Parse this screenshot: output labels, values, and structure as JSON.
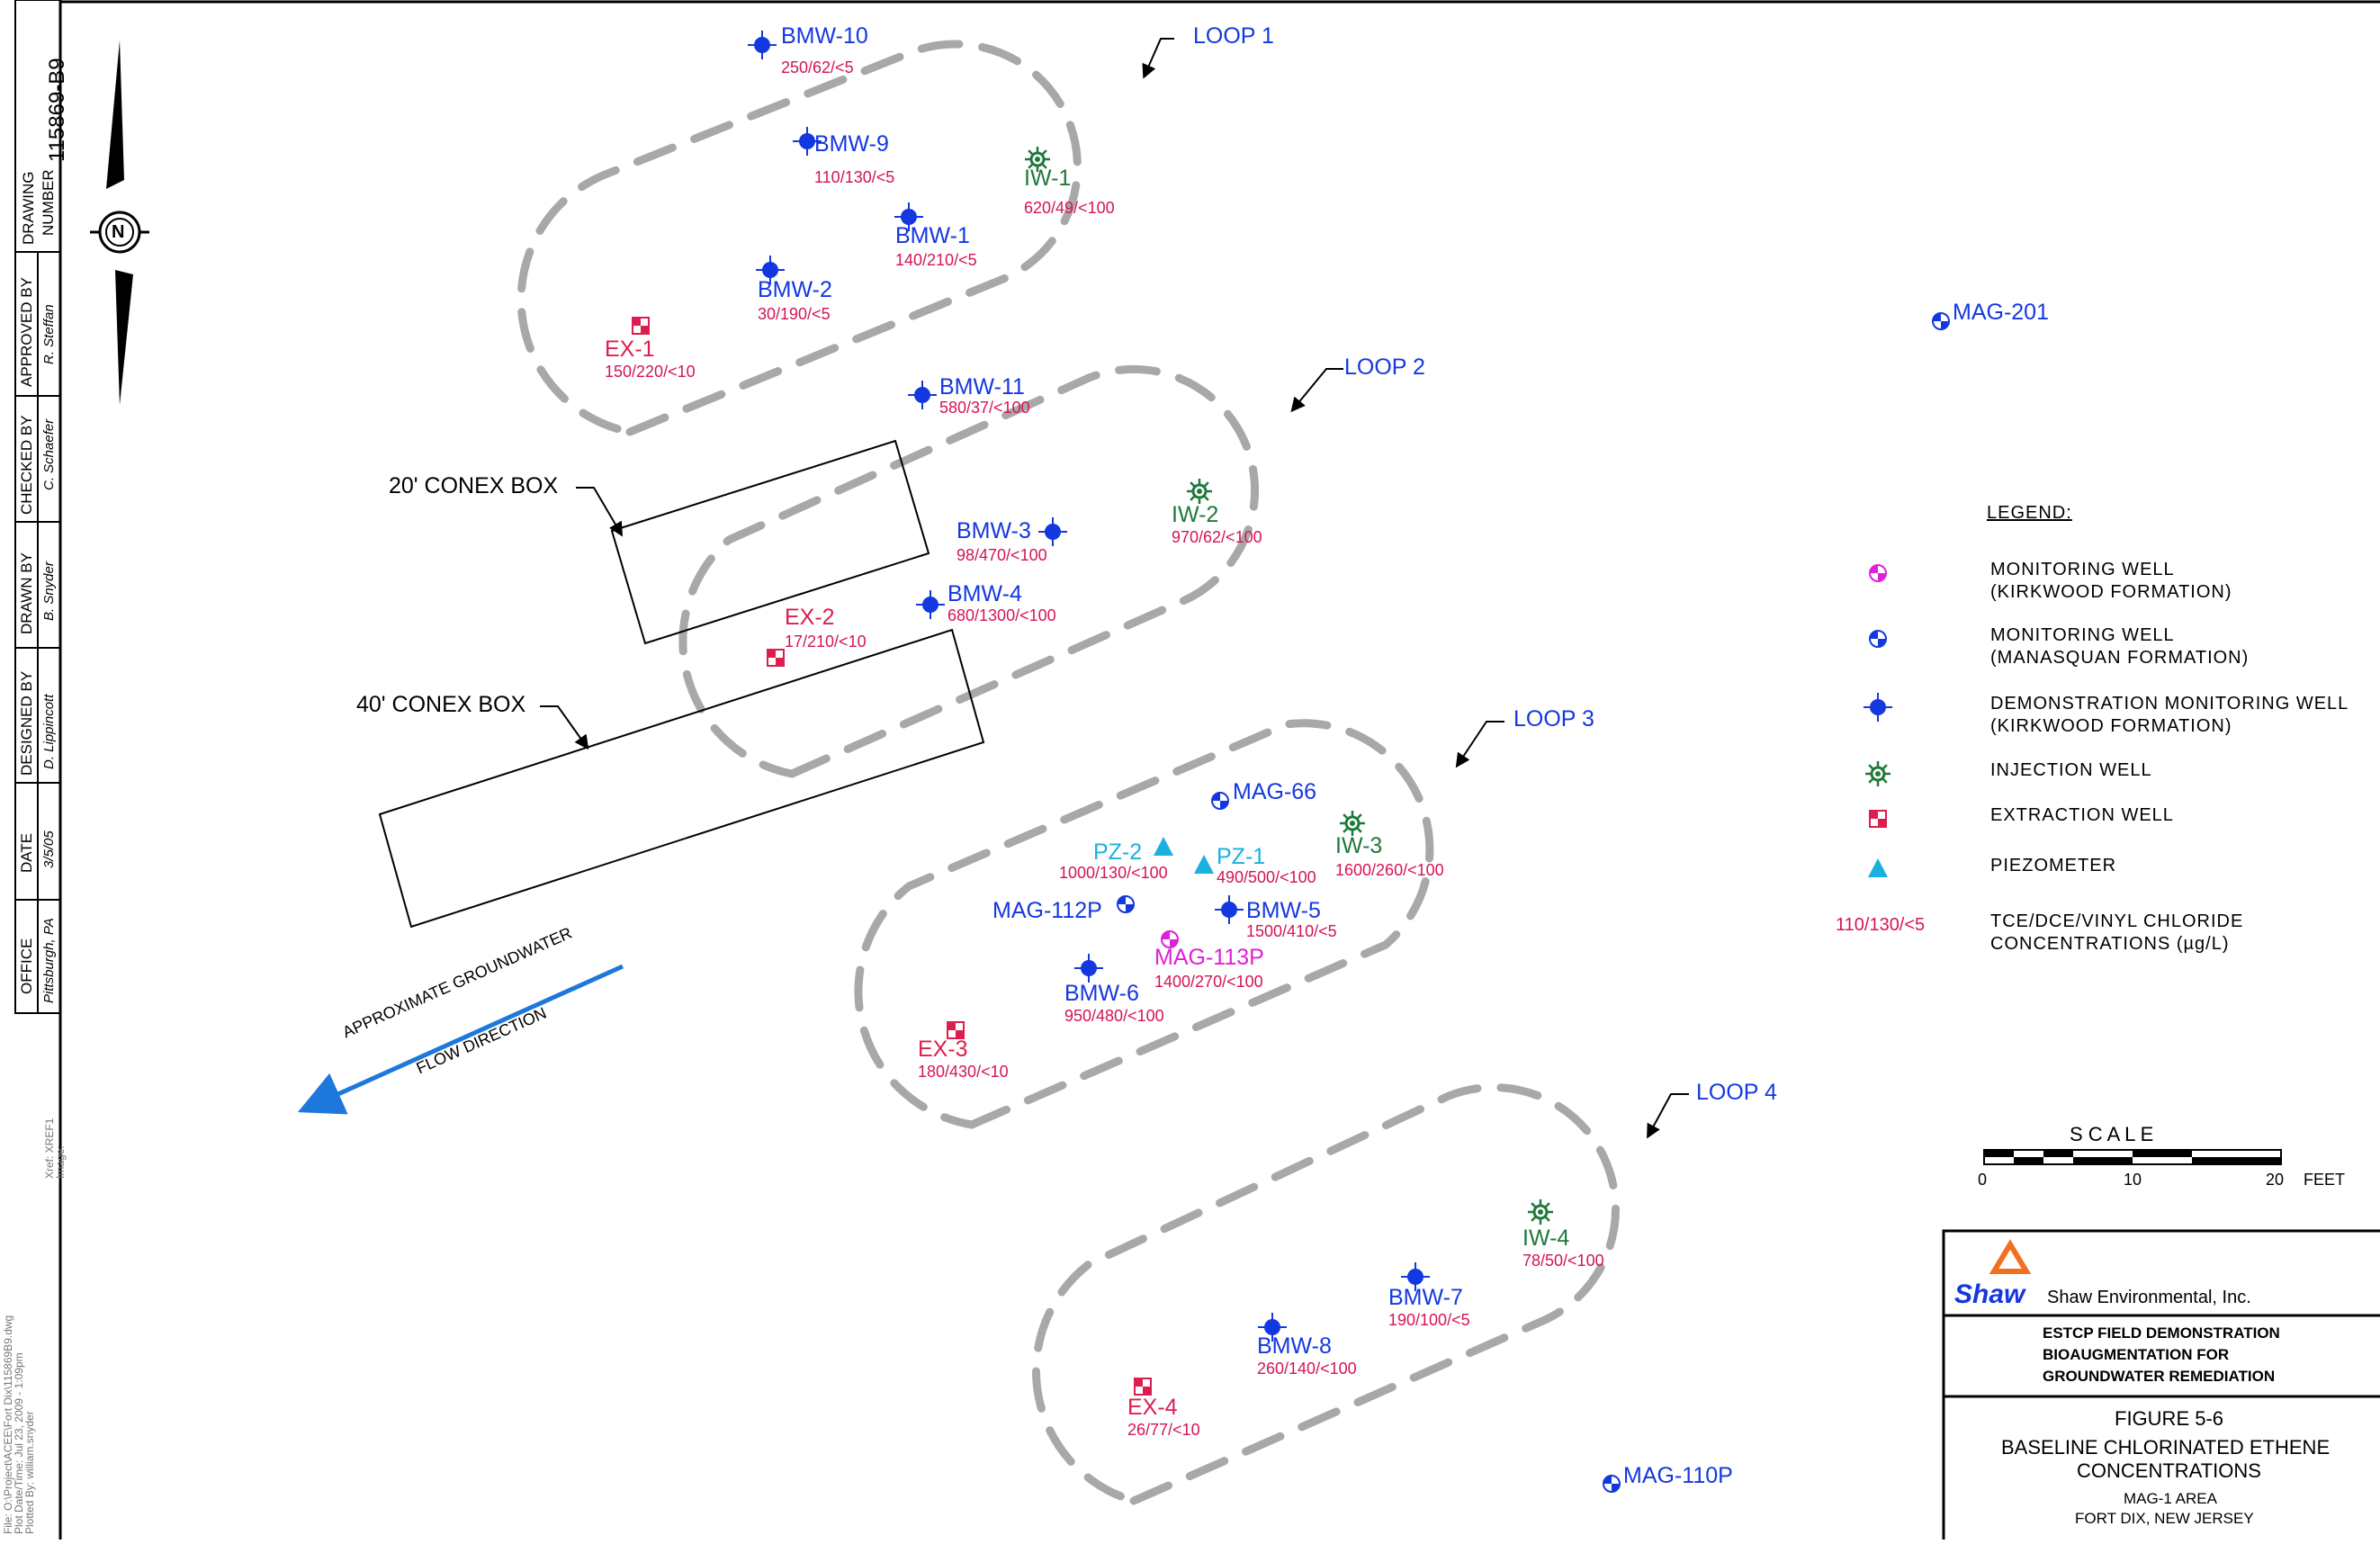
{
  "colors": {
    "demo_well": "#1438e0",
    "injection": "#1e7a3a",
    "extraction": "#dc1e4e",
    "conc": "#d4145a",
    "piezometer": "#1ab0e0",
    "kirkwood": "#e020d8",
    "manasquan": "#1438e0",
    "loop": "#a8a8a8",
    "flow_arrow": "#1e78dc",
    "shaw_orange": "#f07020"
  },
  "title_block": {
    "drawing_number_label_1": "DRAWING",
    "drawing_number_label_2": "NUMBER",
    "drawing_number": "115869-B9",
    "approved_by_label": "APPROVED BY",
    "approved_by": "R. Steffan",
    "checked_by_label": "CHECKED BY",
    "checked_by": "C. Schaefer",
    "drawn_by_label": "DRAWN BY",
    "drawn_by": "B. Snyder",
    "designed_by_label": "DESIGNED BY",
    "designed_by": "D. Lippincott",
    "date_label": "DATE",
    "date": "3/5/05",
    "office_label": "OFFICE",
    "office": "Pittsburgh, PA"
  },
  "file_info": {
    "line1": "File: O:\\Project\\ACEE\\Fort Dix\\115869B9.dwg",
    "line2": "Plot Date/Time: Jul 23, 2009 - 1:09pm",
    "line3": "Plotted By: william.snyder",
    "xref": "Xref: XREF1",
    "image": "Image:"
  },
  "north_symbol": "N",
  "loops": [
    "LOOP 1",
    "LOOP 2",
    "LOOP 3",
    "LOOP 4"
  ],
  "conex": [
    "20' CONEX BOX",
    "40' CONEX BOX"
  ],
  "flow": [
    "APPROXIMATE GROUNDWATER",
    "FLOW DIRECTION"
  ],
  "wells": [
    {
      "id": "BMW-10",
      "type": "demo",
      "conc": "250/62/<5"
    },
    {
      "id": "BMW-9",
      "type": "demo",
      "conc": "110/130/<5"
    },
    {
      "id": "IW-1",
      "type": "injection",
      "conc": "620/49/<100"
    },
    {
      "id": "BMW-1",
      "type": "demo",
      "conc": "140/210/<5"
    },
    {
      "id": "BMW-2",
      "type": "demo",
      "conc": "30/190/<5"
    },
    {
      "id": "EX-1",
      "type": "extraction",
      "conc": "150/220/<10"
    },
    {
      "id": "BMW-11",
      "type": "demo",
      "conc": "580/37/<100"
    },
    {
      "id": "IW-2",
      "type": "injection",
      "conc": "970/62/<100"
    },
    {
      "id": "BMW-3",
      "type": "demo",
      "conc": "98/470/<100"
    },
    {
      "id": "BMW-4",
      "type": "demo",
      "conc": "680/1300/<100"
    },
    {
      "id": "EX-2",
      "type": "extraction",
      "conc": "17/210/<10"
    },
    {
      "id": "MAG-66",
      "type": "manasquan",
      "conc": ""
    },
    {
      "id": "PZ-2",
      "type": "piezometer",
      "conc": "1000/130/<100"
    },
    {
      "id": "PZ-1",
      "type": "piezometer",
      "conc": "490/500/<100"
    },
    {
      "id": "IW-3",
      "type": "injection",
      "conc": "1600/260/<100"
    },
    {
      "id": "MAG-112P",
      "type": "manasquan",
      "conc": ""
    },
    {
      "id": "BMW-5",
      "type": "demo",
      "conc": "1500/410/<5"
    },
    {
      "id": "MAG-113P",
      "type": "kirkwood",
      "conc": "1400/270/<100"
    },
    {
      "id": "BMW-6",
      "type": "demo",
      "conc": "950/480/<100"
    },
    {
      "id": "EX-3",
      "type": "extraction",
      "conc": "180/430/<10"
    },
    {
      "id": "IW-4",
      "type": "injection",
      "conc": "78/50/<100"
    },
    {
      "id": "BMW-7",
      "type": "demo",
      "conc": "190/100/<5"
    },
    {
      "id": "BMW-8",
      "type": "demo",
      "conc": "260/140/<100"
    },
    {
      "id": "EX-4",
      "type": "extraction",
      "conc": "26/77/<10"
    },
    {
      "id": "MAG-110P",
      "type": "manasquan",
      "conc": ""
    },
    {
      "id": "MAG-201",
      "type": "manasquan",
      "conc": ""
    }
  ],
  "legend": {
    "title": "LEGEND:",
    "items": [
      {
        "type": "kirkwood",
        "line1": "MONITORING WELL",
        "line2": "(KIRKWOOD FORMATION)"
      },
      {
        "type": "manasquan",
        "line1": "MONITORING WELL",
        "line2": "(MANASQUAN FORMATION)"
      },
      {
        "type": "demo",
        "line1": "DEMONSTRATION MONITORING WELL",
        "line2": "(KIRKWOOD FORMATION)"
      },
      {
        "type": "injection",
        "line1": "INJECTION WELL",
        "line2": ""
      },
      {
        "type": "extraction",
        "line1": "EXTRACTION WELL",
        "line2": ""
      },
      {
        "type": "piezometer",
        "line1": "PIEZOMETER",
        "line2": ""
      },
      {
        "type": "conc",
        "sample": "110/130/<5",
        "line1": "TCE/DCE/VINYL CHLORIDE",
        "line2": "CONCENTRATIONS (µg/L)"
      }
    ]
  },
  "scale": {
    "title": "S C A L E",
    "ticks": [
      "0",
      "10",
      "20"
    ],
    "unit": "FEET"
  },
  "company": {
    "logo": "Shaw",
    "name": "Shaw Environmental, Inc.",
    "project": [
      "ESTCP FIELD DEMONSTRATION",
      "BIOAUGMENTATION FOR",
      "GROUNDWATER REMEDIATION"
    ],
    "figure": "FIGURE 5-6",
    "title": [
      "BASELINE CHLORINATED ETHENE",
      "CONCENTRATIONS"
    ],
    "location": [
      "MAG-1 AREA",
      "FORT DIX, NEW JERSEY"
    ]
  }
}
